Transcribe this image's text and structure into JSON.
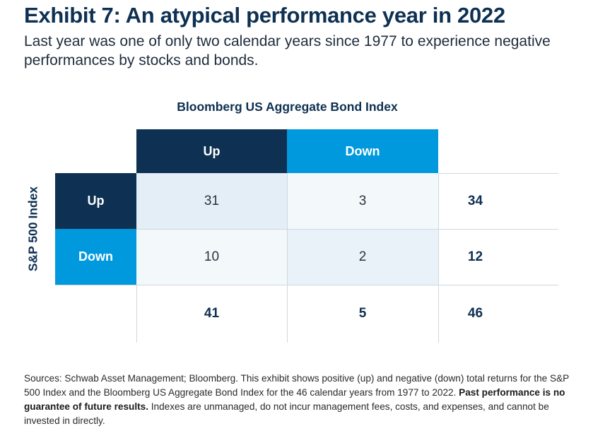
{
  "title": "Exhibit 7: An atypical performance year in 2022",
  "subtitle": "Last year was one of only two calendar years since 1977 to experience negative performances by stocks and bonds.",
  "chart_data": {
    "type": "table",
    "col_axis_title": "Bloomberg US Aggregate Bond Index",
    "row_axis_title": "S&P 500 Index",
    "columns": [
      "Up",
      "Down"
    ],
    "rows": [
      "Up",
      "Down"
    ],
    "values": [
      [
        31,
        3
      ],
      [
        10,
        2
      ]
    ],
    "row_totals": [
      34,
      12
    ],
    "col_totals": [
      41,
      5
    ],
    "grand_total": 46
  },
  "footnote": {
    "text1": "Sources: Schwab Asset Management; Bloomberg. This exhibit shows positive (up) and negative (down) total returns for the S&P 500 Index and the Bloomberg US Aggregate Bond Index for the 46 calendar years from 1977 to 2022. ",
    "bold": "Past performance is no guarantee of future results.",
    "text2": " Indexes are unmanaged, do not incur management fees, costs, and expenses, and cannot be invested in directly."
  },
  "colors": {
    "navy": "#0e3052",
    "blue": "#0199de"
  }
}
